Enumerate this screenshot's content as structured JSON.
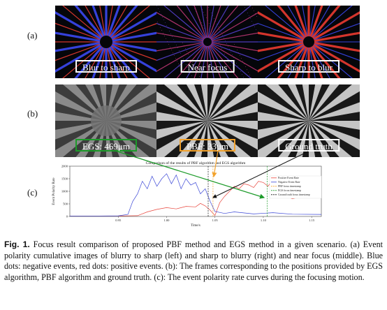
{
  "rows": {
    "a": "(a)",
    "b": "(b)",
    "c": "(c)"
  },
  "row_a": {
    "panels": [
      {
        "label": "Blur to sharp",
        "tone": "blue-dominant"
      },
      {
        "label": "Near focus",
        "tone": "mixed"
      },
      {
        "label": "Sharp to blur",
        "tone": "red-dominant"
      }
    ]
  },
  "row_b": {
    "panels": [
      {
        "label": "EGS: 469μm",
        "border_color": "#1d9b2a"
      },
      {
        "label": "PBF: 33μm",
        "border_color": "#f2a22c"
      },
      {
        "label": "Ground truth",
        "border_color": "#ffffff"
      }
    ]
  },
  "chart_data": {
    "type": "line",
    "title": "Comparison of the results of PBF algorithm and EGS algorithm",
    "xlabel": "Time/s",
    "ylabel": "Event Polarity Rate",
    "xlim": [
      0.9,
      1.16
    ],
    "ylim": [
      0,
      2000
    ],
    "xticks": [
      "0.95",
      "1.00",
      "1.05",
      "1.10",
      "1.15"
    ],
    "yticks": [
      "0",
      "500",
      "1000",
      "1500",
      "2000"
    ],
    "legend_position": "right",
    "series": [
      {
        "name": "Positive Event Rate",
        "color": "#e8453c",
        "x": [
          0.9,
          0.93,
          0.95,
          0.97,
          0.98,
          0.99,
          1.0,
          1.01,
          1.02,
          1.03,
          1.035,
          1.04,
          1.045,
          1.05,
          1.055,
          1.06,
          1.065,
          1.07,
          1.075,
          1.08,
          1.085,
          1.09,
          1.095,
          1.1,
          1.105,
          1.11,
          1.115,
          1.12,
          1.13,
          1.14,
          1.15,
          1.16
        ],
        "y": [
          20,
          20,
          20,
          30,
          180,
          280,
          350,
          300,
          400,
          380,
          520,
          420,
          250,
          40,
          550,
          800,
          1000,
          1200,
          1100,
          1300,
          1250,
          1150,
          1400,
          1350,
          1200,
          1500,
          1100,
          900,
          700,
          800,
          1300,
          1200
        ]
      },
      {
        "name": "Negative Event Rate",
        "color": "#3a46d6",
        "x": [
          0.9,
          0.93,
          0.95,
          0.96,
          0.965,
          0.97,
          0.975,
          0.98,
          0.985,
          0.99,
          0.995,
          1.0,
          1.005,
          1.01,
          1.015,
          1.02,
          1.025,
          1.03,
          1.035,
          1.04,
          1.045,
          1.05,
          1.06,
          1.07,
          1.09,
          1.11,
          1.13,
          1.16
        ],
        "y": [
          20,
          20,
          25,
          80,
          600,
          900,
          1400,
          1100,
          1600,
          1200,
          1500,
          1700,
          1300,
          1650,
          1100,
          1500,
          1250,
          1350,
          900,
          1100,
          600,
          200,
          120,
          180,
          100,
          150,
          90,
          80
        ]
      }
    ],
    "markers": [
      {
        "name": "PBF focus timestamp",
        "x": 1.048,
        "color": "#f2a22c"
      },
      {
        "name": "EGS focus timestamp",
        "x": 1.104,
        "color": "#1d9b2a"
      },
      {
        "name": "Ground truth focus timestamp",
        "x": 1.043,
        "color": "#111111"
      }
    ]
  },
  "caption": {
    "label": "Fig. 1.",
    "text": "Focus result comparison of proposed PBF method and EGS method in a given scenario. (a) Event polarity cumulative images of blurry to sharp (left) and sharp to blurry (right) and near focus (middle). Blue dots: negative events, red dots: positive events. (b): The frames corresponding to the positions provided by EGS algorithm, PBF algorithm and ground truth. (c): The event polarity rate curves during the focusing motion."
  }
}
